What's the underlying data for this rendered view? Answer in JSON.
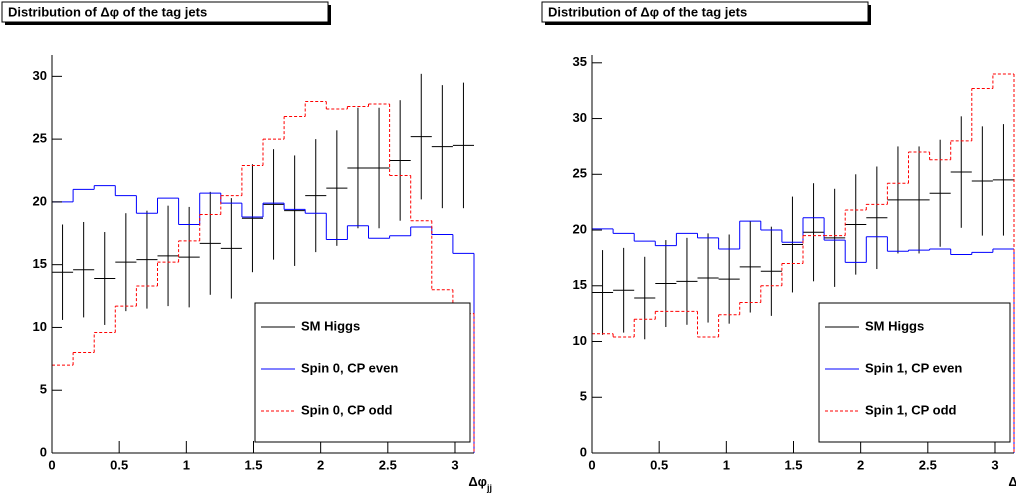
{
  "chart_data": [
    {
      "type": "histogram",
      "title": "Distribution of Δφ of the tag jets",
      "xlabel": {
        "text": "Δφ",
        "subscript": "jj"
      },
      "bins": [
        0,
        0.1571,
        0.3142,
        0.4712,
        0.6283,
        0.7854,
        0.9425,
        1.0996,
        1.2566,
        1.4137,
        1.5708,
        1.7279,
        1.885,
        2.042,
        2.1991,
        2.3562,
        2.5133,
        2.6704,
        2.8274,
        2.9845,
        3.1416
      ],
      "xlim": [
        0,
        3.1416
      ],
      "xticks": [
        0,
        0.5,
        1,
        1.5,
        2,
        2.5,
        3
      ],
      "ylim": [
        0,
        31.7
      ],
      "yticks": [
        0,
        5,
        10,
        15,
        20,
        25,
        30
      ],
      "legend": "lower right",
      "series": [
        {
          "name": "SM Higgs",
          "color": "#000000",
          "style": "errorbar",
          "values": [
            14.4,
            14.6,
            13.9,
            15.2,
            15.4,
            15.7,
            15.6,
            16.7,
            16.3,
            18.7,
            19.8,
            19.3,
            20.5,
            21.1,
            22.7,
            22.7,
            23.3,
            25.2,
            24.4,
            24.5
          ],
          "errors": [
            3.8,
            3.8,
            3.7,
            3.9,
            3.9,
            4.0,
            4.0,
            4.1,
            4.0,
            4.3,
            4.4,
            4.4,
            4.5,
            4.6,
            4.8,
            4.8,
            4.8,
            5.0,
            4.9,
            5.0
          ]
        },
        {
          "name": "Spin 0, CP even",
          "color": "#0000ff",
          "style": "step",
          "values": [
            20.0,
            21.0,
            21.3,
            20.5,
            19.1,
            20.3,
            18.2,
            20.7,
            19.9,
            18.8,
            19.9,
            19.4,
            19.1,
            17.0,
            18.1,
            17.1,
            17.3,
            18.0,
            17.4,
            15.9
          ]
        },
        {
          "name": "Spin 0, CP odd",
          "color": "#ff0000",
          "style": "dashed-step",
          "values": [
            7.0,
            8.0,
            9.6,
            11.7,
            13.3,
            15.2,
            16.9,
            19.0,
            20.5,
            22.9,
            25.0,
            26.8,
            28.0,
            27.4,
            27.6,
            27.8,
            22.1,
            18.5,
            13.0,
            11.1
          ]
        }
      ]
    },
    {
      "type": "histogram",
      "title": "Distribution of Δφ of the tag jets",
      "xlabel": {
        "text": "Δφ",
        "subscript": "jj"
      },
      "bins": [
        0,
        0.1571,
        0.3142,
        0.4712,
        0.6283,
        0.7854,
        0.9425,
        1.0996,
        1.2566,
        1.4137,
        1.5708,
        1.7279,
        1.885,
        2.042,
        2.1991,
        2.3562,
        2.5133,
        2.6704,
        2.8274,
        2.9845,
        3.1416
      ],
      "xlim": [
        0,
        3.1416
      ],
      "xticks": [
        0,
        0.5,
        1,
        1.5,
        2,
        2.5,
        3
      ],
      "ylim": [
        0,
        35.7
      ],
      "yticks": [
        0,
        5,
        10,
        15,
        20,
        25,
        30,
        35
      ],
      "legend": "lower right",
      "series": [
        {
          "name": "SM Higgs",
          "color": "#000000",
          "style": "errorbar",
          "values": [
            14.4,
            14.6,
            13.9,
            15.2,
            15.4,
            15.7,
            15.6,
            16.7,
            16.3,
            18.7,
            19.8,
            19.3,
            20.5,
            21.1,
            22.7,
            22.7,
            23.3,
            25.2,
            24.4,
            24.5
          ],
          "errors": [
            3.8,
            3.8,
            3.7,
            3.9,
            3.9,
            4.0,
            4.0,
            4.1,
            4.0,
            4.3,
            4.4,
            4.4,
            4.5,
            4.6,
            4.8,
            4.8,
            4.8,
            5.0,
            4.9,
            5.0
          ]
        },
        {
          "name": "Spin 1, CP even",
          "color": "#0000ff",
          "style": "step",
          "values": [
            20.1,
            19.7,
            19.0,
            18.6,
            19.7,
            19.3,
            18.3,
            20.8,
            20.0,
            18.9,
            21.1,
            19.1,
            17.1,
            19.4,
            18.1,
            18.2,
            18.3,
            17.8,
            18.0,
            18.3
          ]
        },
        {
          "name": "Spin 1, CP odd",
          "color": "#ff0000",
          "style": "dashed-step",
          "values": [
            10.7,
            10.4,
            12.0,
            12.7,
            12.7,
            10.4,
            12.4,
            13.5,
            15.0,
            17.0,
            19.5,
            19.5,
            21.8,
            22.3,
            24.2,
            27.0,
            26.3,
            28.0,
            32.7,
            34.0
          ]
        }
      ]
    }
  ]
}
